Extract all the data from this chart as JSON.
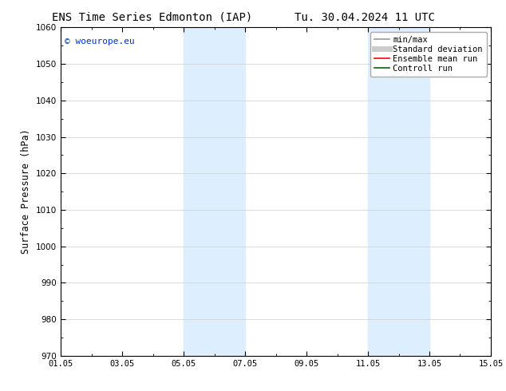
{
  "title_left": "ENS Time Series Edmonton (IAP)",
  "title_right": "Tu. 30.04.2024 11 UTC",
  "ylabel": "Surface Pressure (hPa)",
  "ylim": [
    970,
    1060
  ],
  "yticks": [
    970,
    980,
    990,
    1000,
    1010,
    1020,
    1030,
    1040,
    1050,
    1060
  ],
  "xlim": [
    0,
    14
  ],
  "xtick_positions": [
    0,
    2,
    4,
    6,
    8,
    10,
    12,
    14
  ],
  "xtick_labels": [
    "01.05",
    "03.05",
    "05.05",
    "07.05",
    "09.05",
    "11.05",
    "13.05",
    "15.05"
  ],
  "shaded_bands": [
    {
      "x_start": 4.0,
      "x_end": 6.0
    },
    {
      "x_start": 10.0,
      "x_end": 12.0
    }
  ],
  "shaded_color": "#ddeeff",
  "background_color": "#ffffff",
  "grid_color": "#cccccc",
  "watermark_text": "© woeurope.eu",
  "watermark_color": "#0033cc",
  "legend_items": [
    {
      "label": "min/max",
      "color": "#999999",
      "lw": 1.2,
      "style": "solid"
    },
    {
      "label": "Standard deviation",
      "color": "#cccccc",
      "lw": 5,
      "style": "solid"
    },
    {
      "label": "Ensemble mean run",
      "color": "#ff0000",
      "lw": 1.2,
      "style": "solid"
    },
    {
      "label": "Controll run",
      "color": "#006600",
      "lw": 1.2,
      "style": "solid"
    }
  ],
  "title_fontsize": 10,
  "tick_fontsize": 7.5,
  "ylabel_fontsize": 8.5,
  "watermark_fontsize": 8,
  "legend_fontsize": 7.5
}
